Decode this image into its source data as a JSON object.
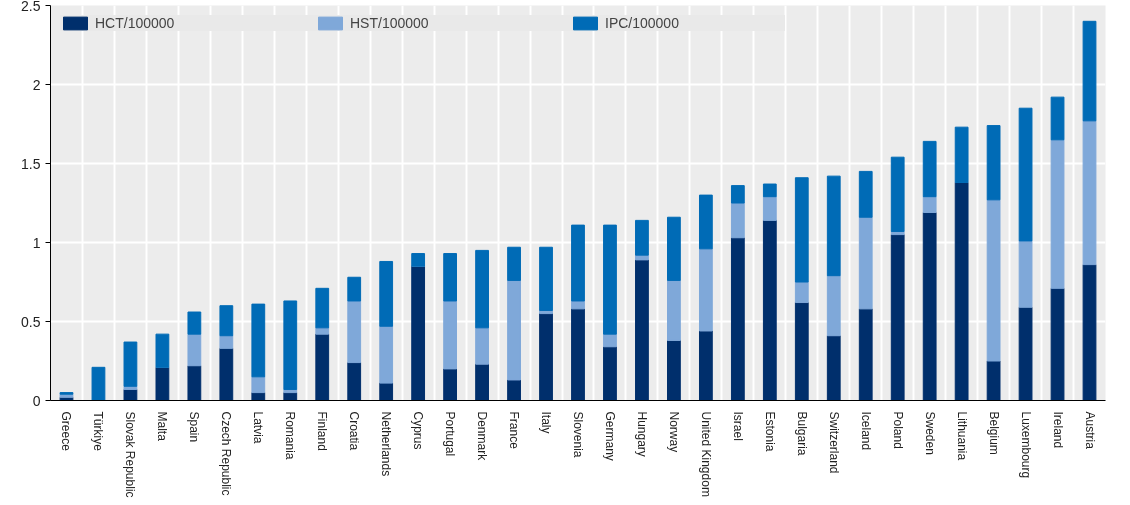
{
  "chart_data": {
    "type": "bar",
    "stacked": true,
    "categories": [
      "Greece",
      "Türkiye",
      "Slovak Republic",
      "Malta",
      "Spain",
      "Czech Republic",
      "Latvia",
      "Romania",
      "Finland",
      "Croatia",
      "Netherlands",
      "Cyprus",
      "Portugal",
      "Denmark",
      "France",
      "Italy",
      "Slovenia",
      "Germany",
      "Hungary",
      "Norway",
      "United Kingdom",
      "Israel",
      "Estonia",
      "Bulgaria",
      "Switzerland",
      "Iceland",
      "Poland",
      "Sweden",
      "Lithuania",
      "Belgium",
      "Luxembourg",
      "Ireland",
      "Austria"
    ],
    "series": [
      {
        "name": "HCT/100000",
        "color": "#002f6c",
        "values": [
          0.02,
          0,
          0.07,
          0.21,
          0.22,
          0.33,
          0.05,
          0.05,
          0.42,
          0.24,
          0.11,
          0.85,
          0.2,
          0.23,
          0.13,
          0.55,
          0.58,
          0.34,
          0.89,
          0.38,
          0.44,
          1.03,
          1.14,
          0.62,
          0.41,
          0.58,
          1.05,
          1.19,
          1.38,
          0.25,
          0.59,
          0.71,
          0.86
        ]
      },
      {
        "name": "HST/100000",
        "color": "#7fa8d9",
        "values": [
          0.02,
          0,
          0.02,
          0,
          0.2,
          0.08,
          0.1,
          0.02,
          0.04,
          0.39,
          0.36,
          0,
          0.43,
          0.23,
          0.63,
          0.02,
          0.05,
          0.08,
          0.03,
          0.38,
          0.52,
          0.22,
          0.15,
          0.13,
          0.38,
          0.58,
          0.02,
          0.1,
          0,
          1.02,
          0.42,
          0.94,
          0.91
        ]
      },
      {
        "name": "IPC/100000",
        "color": "#006bb6",
        "values": [
          0.01,
          0.21,
          0.28,
          0.21,
          0.14,
          0.19,
          0.46,
          0.56,
          0.25,
          0.15,
          0.41,
          0.08,
          0.3,
          0.49,
          0.21,
          0.4,
          0.48,
          0.69,
          0.22,
          0.4,
          0.34,
          0.11,
          0.08,
          0.66,
          0.63,
          0.29,
          0.47,
          0.35,
          0.35,
          0.47,
          0.84,
          0.27,
          0.63
        ]
      }
    ],
    "ylim": [
      0,
      2.5
    ],
    "yticks": [
      0,
      0.5,
      1,
      1.5,
      2,
      2.5
    ],
    "grid": true,
    "legend": "top"
  }
}
